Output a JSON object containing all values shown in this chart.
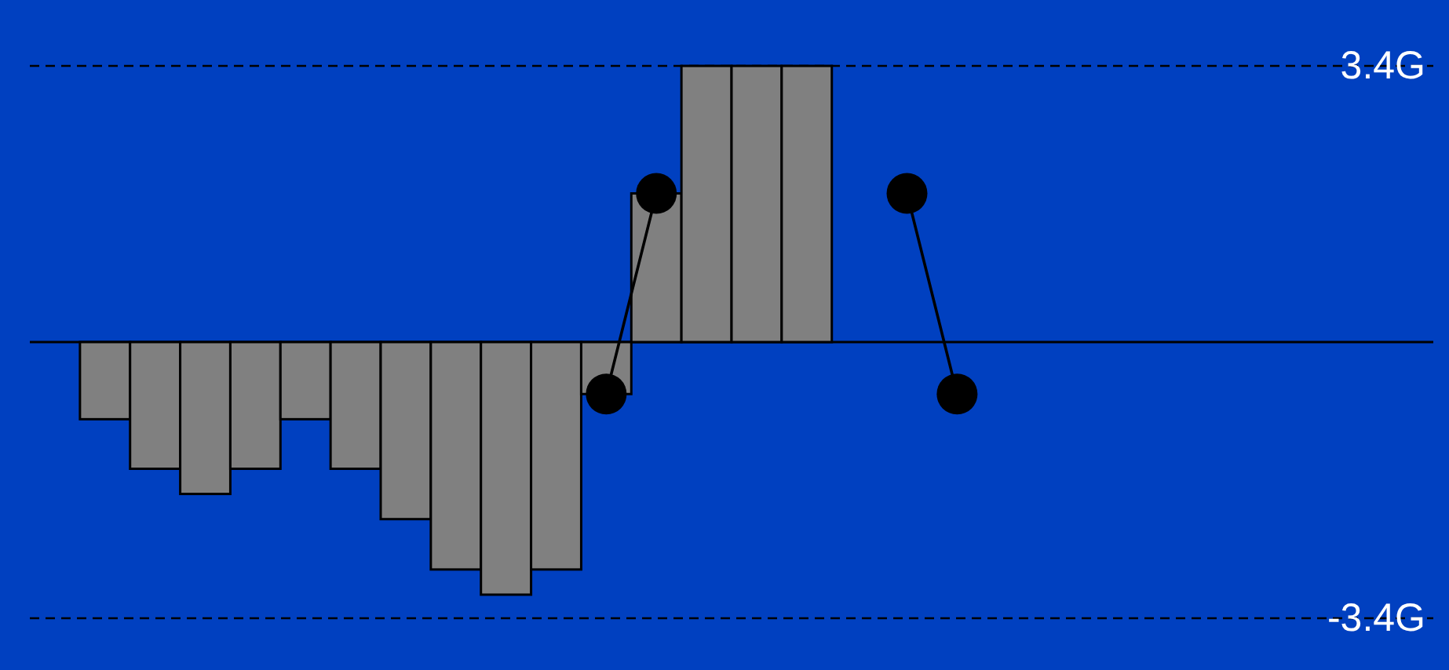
{
  "chart_data": {
    "type": "bar",
    "categories": [
      null,
      null,
      null,
      null,
      null,
      null,
      null,
      null,
      null,
      null,
      null,
      null,
      null,
      null,
      null,
      null,
      null,
      null,
      null,
      null,
      null,
      null,
      null,
      null,
      null,
      null,
      null,
      null
    ],
    "series": [
      {
        "color": "#808080",
        "values": [
          null,
          -0.95,
          -1.56,
          -1.87,
          -1.56,
          -0.95,
          -1.56,
          -2.18,
          -2.8,
          -3.11,
          -2.8,
          -0.64,
          1.83,
          3.4,
          3.4,
          3.4,
          null,
          null,
          null,
          null,
          null,
          null,
          null,
          null,
          null,
          null,
          null,
          null
        ]
      },
      {
        "type": "line",
        "color": "#000000",
        "values": [
          null,
          null,
          null,
          null,
          null,
          null,
          null,
          null,
          null,
          null,
          null,
          -0.64,
          1.83,
          null,
          null,
          null,
          null,
          1.83,
          -0.64,
          null,
          null,
          null,
          null,
          null,
          null,
          null,
          null,
          null
        ]
      }
    ],
    "marker": "circle",
    "line_style": "solid",
    "ylim": [
      -3.4,
      3.4
    ],
    "yticks": [
      {
        "value": 3.4,
        "label": "3.4G"
      },
      {
        "value": -3.4,
        "label": "-3.4G"
      }
    ],
    "tick_labels": "y",
    "grid": "y"
  }
}
